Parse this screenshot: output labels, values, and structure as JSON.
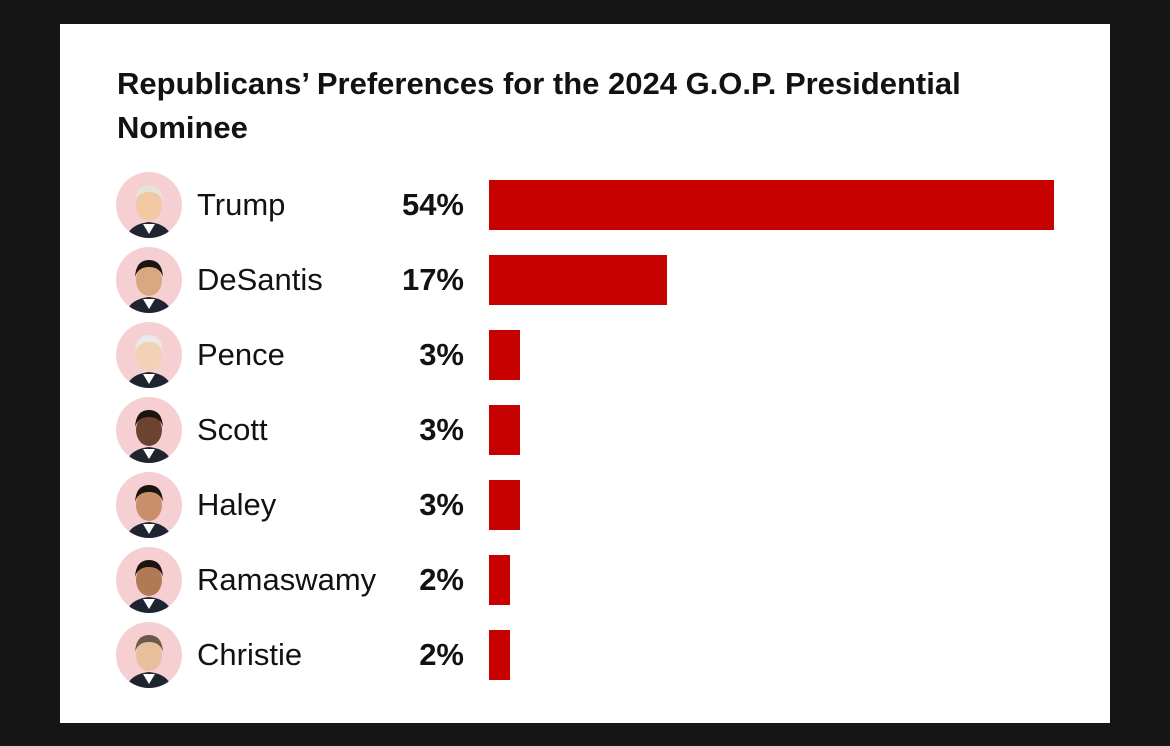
{
  "chart_data": {
    "type": "bar",
    "orientation": "horizontal",
    "title": "Republicans’ Preferences for the 2024 G.O.P. Presidential Nominee",
    "categories": [
      "Trump",
      "DeSantis",
      "Pence",
      "Scott",
      "Haley",
      "Ramaswamy",
      "Christie"
    ],
    "values": [
      54,
      17,
      3,
      3,
      3,
      2,
      2
    ],
    "value_labels": [
      "54%",
      "17%",
      "3%",
      "3%",
      "3%",
      "2%",
      "2%"
    ],
    "bar_color": "#c70000",
    "grid": false,
    "xlim": [
      0,
      54
    ]
  },
  "colors": {
    "background": "#151515",
    "card": "#ffffff",
    "bar": "#c70000",
    "avatar_ring": "#f6cfd3",
    "text": "#121212"
  },
  "icons": {
    "avatar": "candidate-photo-icon"
  }
}
